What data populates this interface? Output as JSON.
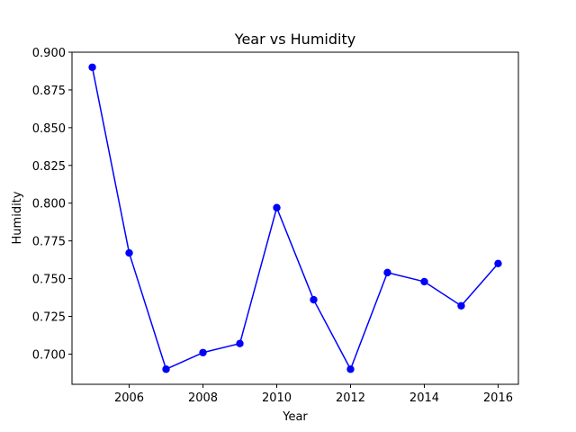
{
  "chart_data": {
    "type": "line",
    "title": "Year vs Humidity",
    "xlabel": "Year",
    "ylabel": "Humidity",
    "x": [
      2005,
      2006,
      2007,
      2008,
      2009,
      2010,
      2011,
      2012,
      2013,
      2014,
      2015,
      2016
    ],
    "series": [
      {
        "values": [
          0.89,
          0.767,
          0.69,
          0.701,
          0.707,
          0.797,
          0.736,
          0.69,
          0.754,
          0.748,
          0.732,
          0.76
        ],
        "color": "#0000ff",
        "marker": "circle"
      }
    ],
    "xlim": [
      2004.45,
      2016.55
    ],
    "ylim": [
      0.68,
      0.9
    ],
    "xticks": [
      "2006",
      "2008",
      "2010",
      "2012",
      "2014",
      "2016"
    ],
    "yticks": [
      "0.700",
      "0.725",
      "0.750",
      "0.775",
      "0.800",
      "0.825",
      "0.850",
      "0.875",
      "0.900"
    ],
    "grid": false,
    "legend": "none"
  }
}
